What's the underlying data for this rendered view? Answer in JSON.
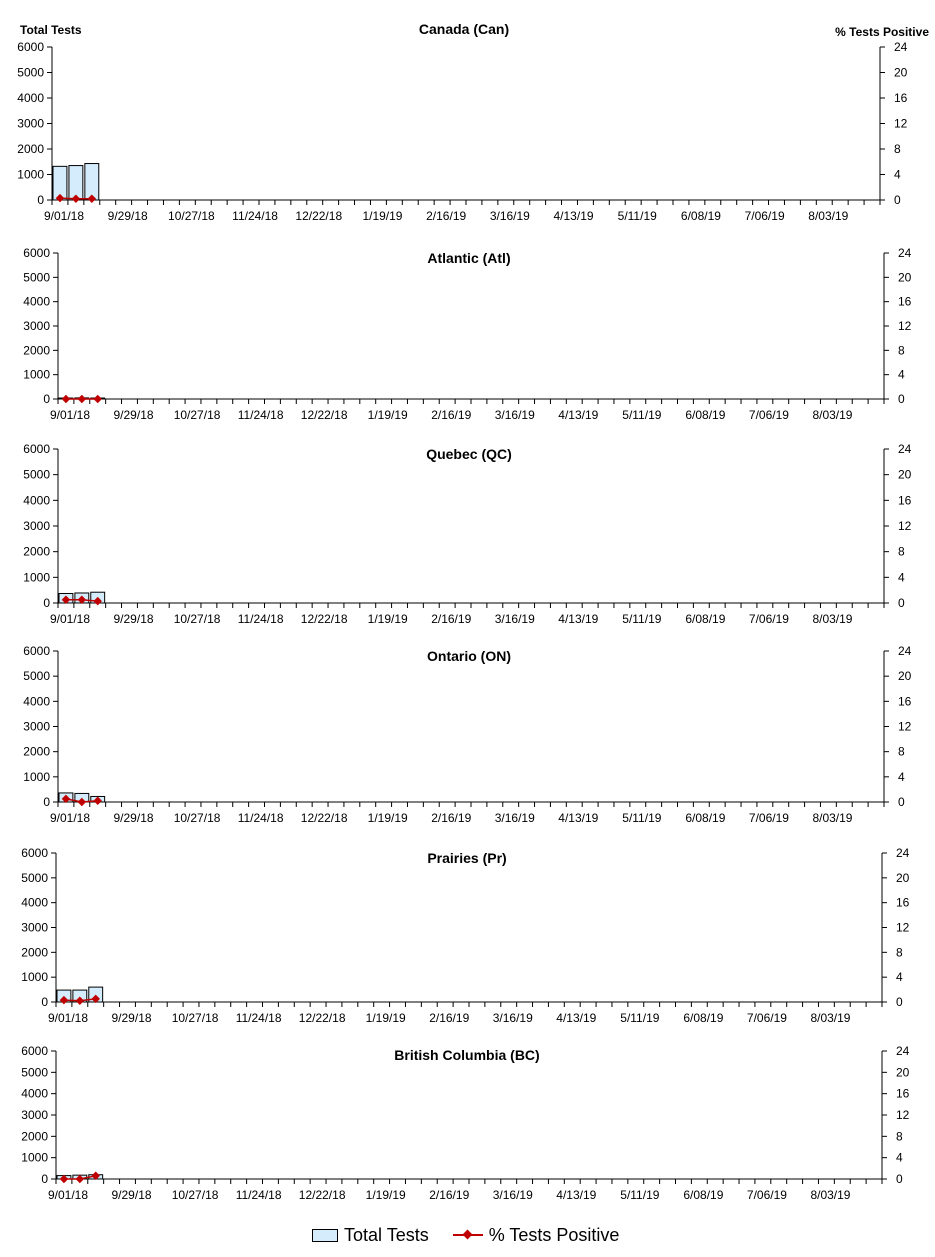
{
  "colors": {
    "bar_fill": "#d4ecfb",
    "bar_stroke": "#000000",
    "line": "#c00000"
  },
  "legend": {
    "bars_label": "Total Tests",
    "line_label": "% Tests Positive"
  },
  "chart_data": [
    {
      "type": "bar",
      "title": "Canada (Can)",
      "ylabel": "Total Tests",
      "y2label": "% Tests Positive",
      "ylim": [
        0,
        6000
      ],
      "yticks": [
        0,
        1000,
        2000,
        3000,
        4000,
        5000,
        6000
      ],
      "y2lim": [
        0,
        24
      ],
      "y2ticks": [
        0,
        4,
        8,
        12,
        16,
        20,
        24
      ],
      "x_tick_labels": [
        "9/01/18",
        "9/29/18",
        "10/27/18",
        "11/24/18",
        "12/22/18",
        "1/19/19",
        "2/16/19",
        "3/16/19",
        "4/13/19",
        "5/11/19",
        "6/08/19",
        "7/06/19",
        "8/03/19"
      ],
      "week_count": 52,
      "series": [
        {
          "name": "Total Tests",
          "axis": "left",
          "values": [
            1320,
            1350,
            1430
          ]
        },
        {
          "name": "% Tests Positive",
          "axis": "right",
          "values": [
            0.3,
            0.2,
            0.2
          ]
        }
      ]
    },
    {
      "type": "bar",
      "title": "Atlantic (Atl)",
      "ylim": [
        0,
        6000
      ],
      "yticks": [
        0,
        1000,
        2000,
        3000,
        4000,
        5000,
        6000
      ],
      "y2lim": [
        0,
        24
      ],
      "y2ticks": [
        0,
        4,
        8,
        12,
        16,
        20,
        24
      ],
      "x_tick_labels": [
        "9/01/18",
        "9/29/18",
        "10/27/18",
        "11/24/18",
        "12/22/18",
        "1/19/19",
        "2/16/19",
        "3/16/19",
        "4/13/19",
        "5/11/19",
        "6/08/19",
        "7/06/19",
        "8/03/19"
      ],
      "week_count": 52,
      "series": [
        {
          "name": "Total Tests",
          "axis": "left",
          "values": [
            40,
            45,
            40
          ]
        },
        {
          "name": "% Tests Positive",
          "axis": "right",
          "values": [
            0,
            0,
            0
          ]
        }
      ]
    },
    {
      "type": "bar",
      "title": "Quebec (QC)",
      "ylim": [
        0,
        6000
      ],
      "yticks": [
        0,
        1000,
        2000,
        3000,
        4000,
        5000,
        6000
      ],
      "y2lim": [
        0,
        24
      ],
      "y2ticks": [
        0,
        4,
        8,
        12,
        16,
        20,
        24
      ],
      "x_tick_labels": [
        "9/01/18",
        "9/29/18",
        "10/27/18",
        "11/24/18",
        "12/22/18",
        "1/19/19",
        "2/16/19",
        "3/16/19",
        "4/13/19",
        "5/11/19",
        "6/08/19",
        "7/06/19",
        "8/03/19"
      ],
      "week_count": 52,
      "series": [
        {
          "name": "Total Tests",
          "axis": "left",
          "values": [
            370,
            390,
            420
          ]
        },
        {
          "name": "% Tests Positive",
          "axis": "right",
          "values": [
            0.5,
            0.5,
            0.3
          ]
        }
      ]
    },
    {
      "type": "bar",
      "title": "Ontario (ON)",
      "ylim": [
        0,
        6000
      ],
      "yticks": [
        0,
        1000,
        2000,
        3000,
        4000,
        5000,
        6000
      ],
      "y2lim": [
        0,
        24
      ],
      "y2ticks": [
        0,
        4,
        8,
        12,
        16,
        20,
        24
      ],
      "x_tick_labels": [
        "9/01/18",
        "9/29/18",
        "10/27/18",
        "11/24/18",
        "12/22/18",
        "1/19/19",
        "2/16/19",
        "3/16/19",
        "4/13/19",
        "5/11/19",
        "6/08/19",
        "7/06/19",
        "8/03/19"
      ],
      "week_count": 52,
      "series": [
        {
          "name": "Total Tests",
          "axis": "left",
          "values": [
            360,
            340,
            220
          ]
        },
        {
          "name": "% Tests Positive",
          "axis": "right",
          "values": [
            0.5,
            0,
            0.2
          ]
        }
      ]
    },
    {
      "type": "bar",
      "title": "Prairies (Pr)",
      "ylim": [
        0,
        6000
      ],
      "yticks": [
        0,
        1000,
        2000,
        3000,
        4000,
        5000,
        6000
      ],
      "y2lim": [
        0,
        24
      ],
      "y2ticks": [
        0,
        4,
        8,
        12,
        16,
        20,
        24
      ],
      "x_tick_labels": [
        "9/01/18",
        "9/29/18",
        "10/27/18",
        "11/24/18",
        "12/22/18",
        "1/19/19",
        "2/16/19",
        "3/16/19",
        "4/13/19",
        "5/11/19",
        "6/08/19",
        "7/06/19",
        "8/03/19"
      ],
      "week_count": 52,
      "series": [
        {
          "name": "Total Tests",
          "axis": "left",
          "values": [
            480,
            480,
            600
          ]
        },
        {
          "name": "% Tests Positive",
          "axis": "right",
          "values": [
            0.3,
            0.2,
            0.5
          ]
        }
      ]
    },
    {
      "type": "bar",
      "title": "British Columbia (BC)",
      "ylim": [
        0,
        6000
      ],
      "yticks": [
        0,
        1000,
        2000,
        3000,
        4000,
        5000,
        6000
      ],
      "y2lim": [
        0,
        24
      ],
      "y2ticks": [
        0,
        4,
        8,
        12,
        16,
        20,
        24
      ],
      "x_tick_labels": [
        "9/01/18",
        "9/29/18",
        "10/27/18",
        "11/24/18",
        "12/22/18",
        "1/19/19",
        "2/16/19",
        "3/16/19",
        "4/13/19",
        "5/11/19",
        "6/08/19",
        "7/06/19",
        "8/03/19"
      ],
      "week_count": 52,
      "series": [
        {
          "name": "Total Tests",
          "axis": "left",
          "values": [
            160,
            180,
            200
          ]
        },
        {
          "name": "% Tests Positive",
          "axis": "right",
          "values": [
            0,
            0,
            0.6
          ]
        }
      ]
    }
  ]
}
